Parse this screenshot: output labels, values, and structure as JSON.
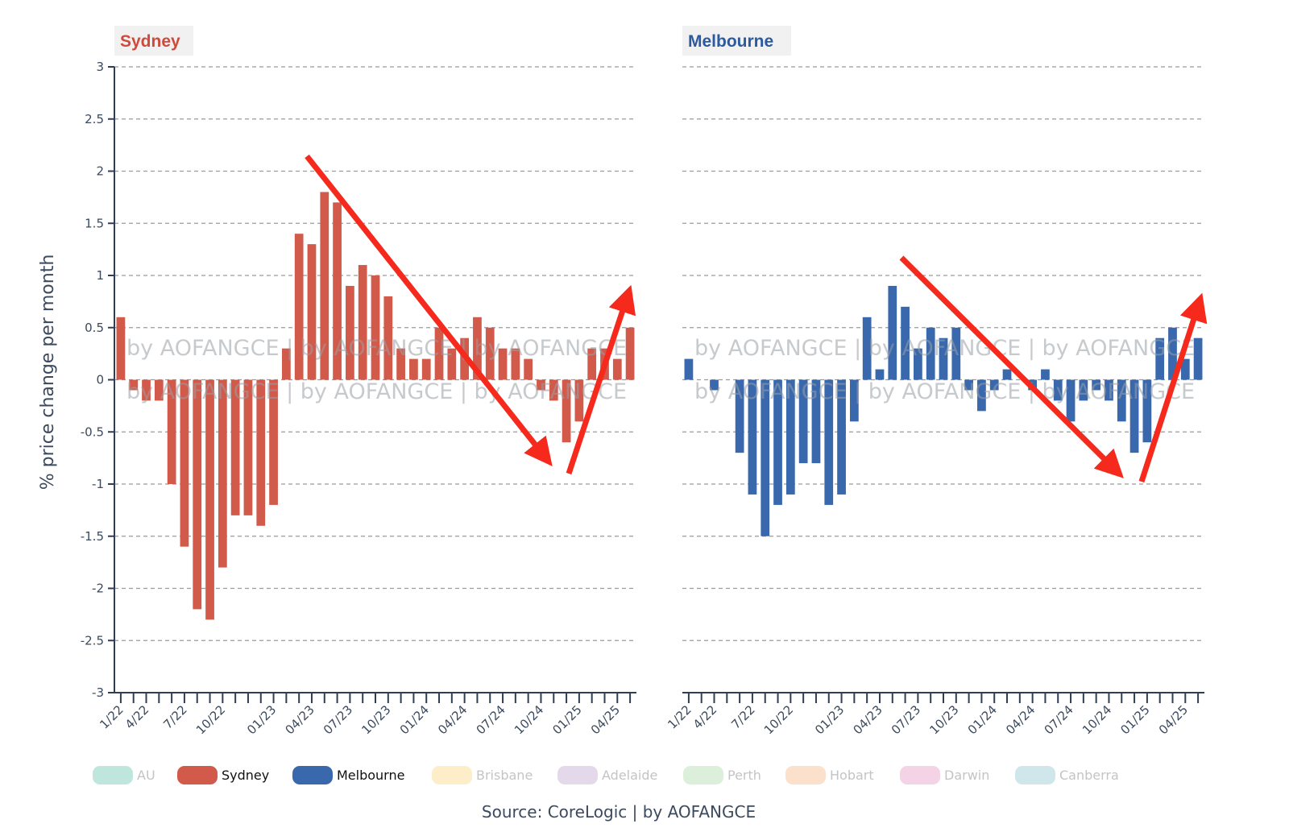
{
  "chart_data": [
    {
      "type": "bar",
      "title": "Sydney",
      "ylabel": "% price change per month",
      "ylim": [
        -3,
        3
      ],
      "yticks": [
        "3",
        "2.5",
        "2",
        "1.5",
        "1",
        "0.5",
        "0",
        "-0.5",
        "-1",
        "-1.5",
        "-2",
        "-2.5",
        "-3"
      ],
      "xtick_labels": [
        "1/22",
        "4/22",
        "7/22",
        "10/22",
        "01/23",
        "04/23",
        "07/23",
        "10/23",
        "01/24",
        "04/24",
        "07/24",
        "10/24",
        "01/25",
        "04/25"
      ],
      "grid": true,
      "color": "#d25a4b",
      "months": [
        "1/22",
        "2/22",
        "3/22",
        "4/22",
        "5/22",
        "6/22",
        "7/22",
        "8/22",
        "9/22",
        "10/22",
        "11/22",
        "12/22",
        "01/23",
        "02/23",
        "03/23",
        "04/23",
        "05/23",
        "06/23",
        "07/23",
        "08/23",
        "09/23",
        "10/23",
        "11/23",
        "12/23",
        "01/24",
        "02/24",
        "03/24",
        "04/24",
        "05/24",
        "06/24",
        "07/24",
        "08/24",
        "09/24",
        "10/24",
        "11/24",
        "12/24",
        "01/25",
        "02/25",
        "03/25",
        "04/25",
        "05/25"
      ],
      "values": [
        0.6,
        -0.1,
        -0.2,
        -0.2,
        -1.0,
        -1.6,
        -2.2,
        -2.3,
        -1.8,
        -1.3,
        -1.3,
        -1.4,
        -1.2,
        0.3,
        1.4,
        1.3,
        1.8,
        1.7,
        0.9,
        1.1,
        1.0,
        0.8,
        0.3,
        0.2,
        0.2,
        0.5,
        0.3,
        0.4,
        0.6,
        0.5,
        0.3,
        0.3,
        0.2,
        -0.1,
        -0.2,
        -0.6,
        -0.4,
        0.3,
        0.3,
        0.2,
        0.5
      ],
      "watermark": [
        "by AOFANGCE | by AOFANGCE | by AOFANGCE",
        "by AOFANGCE | by AOFANGCE | by AOFANGCE"
      ]
    },
    {
      "type": "bar",
      "title": "Melbourne",
      "ylim": [
        -3,
        3
      ],
      "xtick_labels": [
        "1/22",
        "4/22",
        "7/22",
        "10/22",
        "01/23",
        "04/23",
        "07/23",
        "10/23",
        "01/24",
        "04/24",
        "07/24",
        "10/24",
        "01/25",
        "04/25"
      ],
      "grid": true,
      "color": "#3a68ad",
      "months": [
        "1/22",
        "2/22",
        "3/22",
        "4/22",
        "5/22",
        "6/22",
        "7/22",
        "8/22",
        "9/22",
        "10/22",
        "11/22",
        "12/22",
        "01/23",
        "02/23",
        "03/23",
        "04/23",
        "05/23",
        "06/23",
        "07/23",
        "08/23",
        "09/23",
        "10/23",
        "11/23",
        "12/23",
        "01/24",
        "02/24",
        "03/24",
        "04/24",
        "05/24",
        "06/24",
        "07/24",
        "08/24",
        "09/24",
        "10/24",
        "11/24",
        "12/24",
        "01/25",
        "02/25",
        "03/25",
        "04/25",
        "05/25"
      ],
      "values": [
        0.2,
        0,
        -0.1,
        0,
        -0.7,
        -1.1,
        -1.5,
        -1.2,
        -1.1,
        -0.8,
        -0.8,
        -1.2,
        -1.1,
        -0.4,
        0.6,
        0.1,
        0.9,
        0.7,
        0.3,
        0.5,
        0.4,
        0.5,
        -0.1,
        -0.3,
        -0.1,
        0.1,
        0,
        -0.1,
        0.1,
        -0.2,
        -0.4,
        -0.2,
        -0.1,
        -0.2,
        -0.4,
        -0.7,
        -0.6,
        0.4,
        0.5,
        0.2,
        0.4
      ],
      "watermark": [
        "by AOFANGCE | by AOFANGCE | by AOFANGCE",
        "by AOFANGCE | by AOFANGCE | by AOFANGCE"
      ]
    }
  ],
  "annotations": {
    "arrow_color": "#f5291c"
  },
  "legend": [
    {
      "label": "AU",
      "color": "#bfe6dc",
      "active": false
    },
    {
      "label": "Sydney",
      "color": "#d25a4b",
      "active": true
    },
    {
      "label": "Melbourne",
      "color": "#3a68ad",
      "active": true
    },
    {
      "label": "Brisbane",
      "color": "#fdeec9",
      "active": false
    },
    {
      "label": "Adelaide",
      "color": "#e4d9ea",
      "active": false
    },
    {
      "label": "Perth",
      "color": "#dcefdb",
      "active": false
    },
    {
      "label": "Hobart",
      "color": "#fbe0cc",
      "active": false
    },
    {
      "label": "Darwin",
      "color": "#f4d3e6",
      "active": false
    },
    {
      "label": "Canberra",
      "color": "#cfe7ea",
      "active": false
    }
  ],
  "source": "Source: CoreLogic | by AOFANGCE"
}
